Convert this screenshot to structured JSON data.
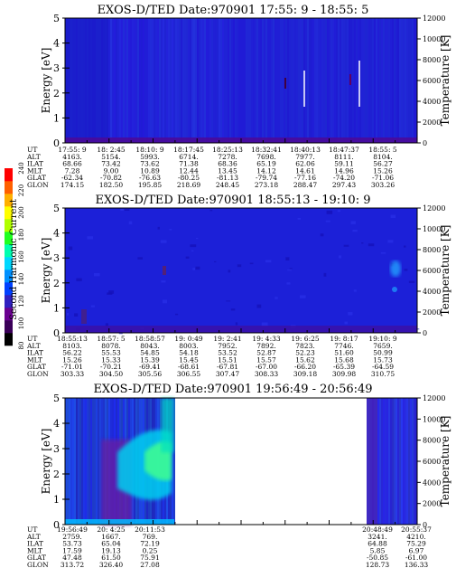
{
  "chart_data": {
    "type": "heatmap",
    "colorbar": {
      "label": "Second Harmonic Current",
      "ticks": [
        "80",
        "100",
        "120",
        "140",
        "160",
        "180",
        "200",
        "220",
        "240"
      ],
      "range": [
        80,
        240
      ],
      "colors": [
        "#000000",
        "#3a0058",
        "#6a0090",
        "#3020c0",
        "#0040ff",
        "#0090ff",
        "#00d8ff",
        "#00ffb0",
        "#20ff20",
        "#b0ff00",
        "#ffff00",
        "#ffb000",
        "#ff6000",
        "#ff0000"
      ]
    },
    "panels": [
      {
        "title": "EXOS-D/TED   Date:970901  17:55: 9 - 18:55: 5",
        "ylabel": "Energy [eV]",
        "y2label": "Temperature [K]",
        "yticks": [
          "0",
          "1",
          "2",
          "3",
          "4",
          "5"
        ],
        "ylim": [
          0,
          5
        ],
        "y2ticks": [
          "0",
          "2000",
          "4000",
          "6000",
          "8000",
          "10000",
          "12000"
        ],
        "y2lim": [
          0,
          12000
        ],
        "orbit_table": {
          "row_labels": [
            "UT",
            "ALT",
            "ILAT",
            "MLT",
            "GLAT",
            "GLON"
          ],
          "columns": [
            [
              "17:55: 9",
              "4163.",
              "68.66",
              "7.28",
              "-62.34",
              "174.15"
            ],
            [
              "18: 2:45",
              "5154.",
              "73.42",
              "9.00",
              "-70.82",
              "182.50"
            ],
            [
              "18:10: 9",
              "5993.",
              "73.62",
              "10.89",
              "-76.63",
              "195.85"
            ],
            [
              "18:17:45",
              "6714.",
              "71.38",
              "12.44",
              "-80.25",
              "218.69"
            ],
            [
              "18:25:13",
              "7278.",
              "68.36",
              "13.45",
              "-81.13",
              "248.45"
            ],
            [
              "18:32:41",
              "7698.",
              "65.19",
              "14.12",
              "-79.74",
              "273.18"
            ],
            [
              "18:40:13",
              "7977.",
              "62.06",
              "14.61",
              "-77.16",
              "288.47"
            ],
            [
              "18:47:37",
              "8111.",
              "59.11",
              "14.96",
              "-74.20",
              "297.43"
            ],
            [
              "18:55: 5",
              "8104.",
              "56.27",
              "15.26",
              "-71.06",
              "303.26"
            ]
          ]
        }
      },
      {
        "title": "EXOS-D/TED   Date:970901  18:55:13 - 19:10: 9",
        "ylabel": "Energy [eV]",
        "y2label": "Temperature [K]",
        "yticks": [
          "0",
          "1",
          "2",
          "3",
          "4",
          "5"
        ],
        "ylim": [
          0,
          5
        ],
        "y2ticks": [
          "0",
          "2000",
          "4000",
          "6000",
          "8000",
          "10000",
          "12000"
        ],
        "y2lim": [
          0,
          12000
        ],
        "orbit_table": {
          "row_labels": [
            "UT",
            "ALT",
            "ILAT",
            "MLT",
            "GLAT",
            "GLON"
          ],
          "columns": [
            [
              "18:55:13",
              "8103.",
              "56.22",
              "15.26",
              "-71.01",
              "303.33"
            ],
            [
              "18:57: 5",
              "8078.",
              "55.53",
              "15.33",
              "-70.21",
              "304.50"
            ],
            [
              "18:58:57",
              "8043.",
              "54.85",
              "15.39",
              "-69.41",
              "305.56"
            ],
            [
              "19: 0:49",
              "8003.",
              "54.18",
              "15.45",
              "-68.61",
              "306.55"
            ],
            [
              "19: 2:41",
              "7952.",
              "53.52",
              "15.51",
              "-67.81",
              "307.47"
            ],
            [
              "19: 4:33",
              "7892.",
              "52.87",
              "15.57",
              "-67.00",
              "308.33"
            ],
            [
              "19: 6:25",
              "7823.",
              "52.23",
              "15.62",
              "-66.20",
              "309.18"
            ],
            [
              "19: 8:17",
              "7746.",
              "51.60",
              "15.68",
              "-65.39",
              "309.98"
            ],
            [
              "19:10: 9",
              "7659.",
              "50.99",
              "15.73",
              "-64.59",
              "310.75"
            ]
          ]
        }
      },
      {
        "title": "EXOS-D/TED   Date:970901  19:56:49 - 20:56:49",
        "ylabel": "Energy [eV]",
        "y2label": "Temperature [K]",
        "yticks": [
          "0",
          "1",
          "2",
          "3",
          "4",
          "5"
        ],
        "ylim": [
          0,
          5
        ],
        "y2ticks": [
          "0",
          "2000",
          "4000",
          "6000",
          "8000",
          "10000",
          "12000"
        ],
        "y2lim": [
          0,
          12000
        ],
        "orbit_table": {
          "row_labels": [
            "UT",
            "ALT",
            "ILAT",
            "MLT",
            "GLAT",
            "GLON"
          ],
          "columns": [
            [
              "19:56:49",
              "2759.",
              "53.73",
              "17.59",
              "47.48",
              "313.72"
            ],
            [
              "20: 4:25",
              "1667.",
              "65.04",
              "19.13",
              "61.50",
              "326.40"
            ],
            [
              "20:11:53",
              "769.",
              "72.19",
              "0.25",
              "75.91",
              "27.08"
            ],
            [
              "20:48:49",
              "3241.",
              "64.88",
              "5.85",
              "-50.85",
              "128.73"
            ],
            [
              "20:55:37",
              "4210.",
              "75.29",
              "6.97",
              "-61.00",
              "136.33"
            ]
          ]
        }
      }
    ]
  }
}
